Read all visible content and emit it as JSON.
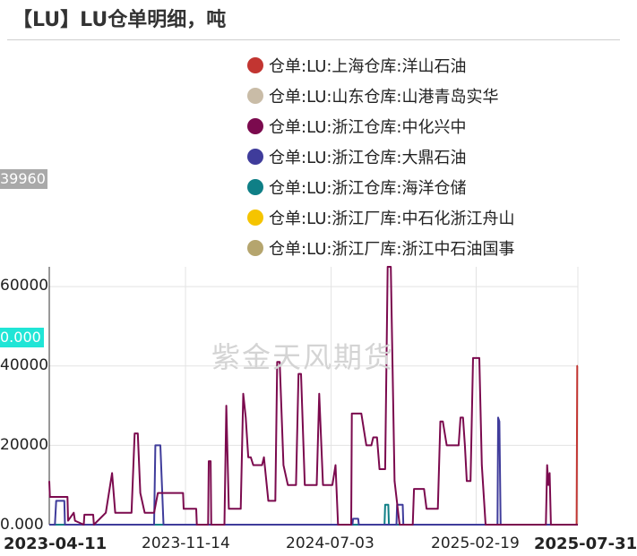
{
  "title": "【LU】LU仓单明细，吨",
  "watermark": "紫金天风期货",
  "y_tag_top": "39960",
  "y_tag_highlight": "0.000",
  "y_tick_labels": [
    "60000",
    "40000",
    "20000",
    "0.000"
  ],
  "x_tick_labels": [
    "2023-04-11",
    "2023-11-14",
    "2024-07-03",
    "2025-02-19",
    "2025-07-31"
  ],
  "legend": [
    {
      "label": "仓单:LU:上海仓库:洋山石油",
      "color": "#c23531"
    },
    {
      "label": "仓单:LU:山东仓库:山港青岛实华",
      "color": "#c9bca7"
    },
    {
      "label": "仓单:LU:浙江仓库:中化兴中",
      "color": "#7b0a4e"
    },
    {
      "label": "仓单:LU:浙江仓库:大鼎石油",
      "color": "#3f3c9b"
    },
    {
      "label": "仓单:LU:浙江仓库:海洋仓储",
      "color": "#0f7f86"
    },
    {
      "label": "仓单:LU:浙江厂库:中石化浙江舟山",
      "color": "#f5c400"
    },
    {
      "label": "仓单:LU:浙江厂库:浙江中石油国事",
      "color": "#b5a56e"
    }
  ],
  "chart_data": {
    "type": "line",
    "title": "【LU】LU仓单明细，吨",
    "xlabel": "",
    "ylabel": "",
    "x_range": [
      "2023-04-11",
      "2025-07-31"
    ],
    "ylim": [
      0,
      65000
    ],
    "grid": true,
    "legend_position": "top-right",
    "series": [
      {
        "name": "仓单:LU:浙江仓库:中化兴中",
        "color": "#7b0a4e",
        "points": [
          [
            "2023-04-11",
            11000
          ],
          [
            "2023-04-12",
            7000
          ],
          [
            "2023-05-10",
            7000
          ],
          [
            "2023-05-11",
            1000
          ],
          [
            "2023-05-20",
            3000
          ],
          [
            "2023-05-22",
            1000
          ],
          [
            "2023-06-05",
            0
          ],
          [
            "2023-06-06",
            2500
          ],
          [
            "2023-06-20",
            2500
          ],
          [
            "2023-06-21",
            0
          ],
          [
            "2023-07-10",
            3000
          ],
          [
            "2023-07-20",
            13000
          ],
          [
            "2023-07-25",
            3000
          ],
          [
            "2023-08-20",
            3000
          ],
          [
            "2023-08-25",
            23000
          ],
          [
            "2023-08-30",
            23000
          ],
          [
            "2023-09-03",
            8000
          ],
          [
            "2023-09-10",
            3000
          ],
          [
            "2023-09-25",
            3000
          ],
          [
            "2023-10-01",
            8000
          ],
          [
            "2023-11-10",
            8000
          ],
          [
            "2023-11-11",
            4000
          ],
          [
            "2023-12-01",
            4000
          ],
          [
            "2023-12-02",
            0
          ],
          [
            "2023-12-20",
            0
          ],
          [
            "2023-12-21",
            16000
          ],
          [
            "2023-12-24",
            16000
          ],
          [
            "2023-12-25",
            0
          ],
          [
            "2024-01-15",
            0
          ],
          [
            "2024-01-18",
            30000
          ],
          [
            "2024-01-22",
            4000
          ],
          [
            "2024-02-10",
            4000
          ],
          [
            "2024-02-14",
            33000
          ],
          [
            "2024-02-18",
            27000
          ],
          [
            "2024-02-22",
            17000
          ],
          [
            "2024-02-26",
            17000
          ],
          [
            "2024-03-01",
            15000
          ],
          [
            "2024-03-15",
            15000
          ],
          [
            "2024-03-18",
            17000
          ],
          [
            "2024-03-25",
            6000
          ],
          [
            "2024-04-05",
            6000
          ],
          [
            "2024-04-08",
            41000
          ],
          [
            "2024-04-12",
            41000
          ],
          [
            "2024-04-18",
            15000
          ],
          [
            "2024-04-25",
            10000
          ],
          [
            "2024-05-08",
            10000
          ],
          [
            "2024-05-12",
            38000
          ],
          [
            "2024-05-16",
            38000
          ],
          [
            "2024-05-22",
            10000
          ],
          [
            "2024-06-10",
            10000
          ],
          [
            "2024-06-14",
            33000
          ],
          [
            "2024-06-20",
            10000
          ],
          [
            "2024-07-05",
            10000
          ],
          [
            "2024-07-10",
            15000
          ],
          [
            "2024-07-14",
            0
          ],
          [
            "2024-08-04",
            0
          ],
          [
            "2024-08-05",
            28000
          ],
          [
            "2024-08-20",
            28000
          ],
          [
            "2024-08-24",
            24000
          ],
          [
            "2024-08-28",
            20000
          ],
          [
            "2024-09-05",
            20000
          ],
          [
            "2024-09-08",
            22000
          ],
          [
            "2024-09-14",
            22000
          ],
          [
            "2024-09-18",
            14000
          ],
          [
            "2024-09-27",
            14000
          ],
          [
            "2024-10-01",
            65000
          ],
          [
            "2024-10-06",
            65000
          ],
          [
            "2024-10-12",
            11000
          ],
          [
            "2024-10-20",
            0
          ],
          [
            "2024-11-10",
            0
          ],
          [
            "2024-11-12",
            9000
          ],
          [
            "2024-11-28",
            9000
          ],
          [
            "2024-12-02",
            4000
          ],
          [
            "2024-12-20",
            4000
          ],
          [
            "2024-12-24",
            26000
          ],
          [
            "2024-12-28",
            26000
          ],
          [
            "2025-01-03",
            20000
          ],
          [
            "2025-01-22",
            20000
          ],
          [
            "2025-01-25",
            27000
          ],
          [
            "2025-01-29",
            27000
          ],
          [
            "2025-02-01",
            20000
          ],
          [
            "2025-02-04",
            11000
          ],
          [
            "2025-02-10",
            11000
          ],
          [
            "2025-02-14",
            42000
          ],
          [
            "2025-02-24",
            42000
          ],
          [
            "2025-02-28",
            15000
          ],
          [
            "2025-03-06",
            0
          ],
          [
            "2025-04-20",
            0
          ],
          [
            "2025-06-10",
            0
          ],
          [
            "2025-06-12",
            15000
          ],
          [
            "2025-06-14",
            10000
          ],
          [
            "2025-06-16",
            13000
          ],
          [
            "2025-06-18",
            0
          ],
          [
            "2025-07-31",
            0
          ]
        ]
      },
      {
        "name": "仓单:LU:浙江仓库:大鼎石油",
        "color": "#3f3c9b",
        "points": [
          [
            "2023-04-11",
            0
          ],
          [
            "2023-04-20",
            0
          ],
          [
            "2023-04-22",
            6000
          ],
          [
            "2023-05-05",
            6000
          ],
          [
            "2023-05-06",
            0
          ],
          [
            "2023-09-25",
            0
          ],
          [
            "2023-09-27",
            20000
          ],
          [
            "2023-10-05",
            20000
          ],
          [
            "2023-10-08",
            8000
          ],
          [
            "2023-10-10",
            0
          ],
          [
            "2024-08-06",
            0
          ],
          [
            "2024-08-07",
            1500
          ],
          [
            "2024-08-15",
            1500
          ],
          [
            "2024-08-16",
            0
          ],
          [
            "2024-10-15",
            0
          ],
          [
            "2024-10-16",
            5000
          ],
          [
            "2024-10-25",
            5000
          ],
          [
            "2024-10-26",
            0
          ],
          [
            "2025-03-25",
            0
          ],
          [
            "2025-03-26",
            27000
          ],
          [
            "2025-03-28",
            26000
          ],
          [
            "2025-03-30",
            0
          ],
          [
            "2025-07-31",
            0
          ]
        ]
      },
      {
        "name": "仓单:LU:浙江仓库:海洋仓储",
        "color": "#0f7f86",
        "points": [
          [
            "2023-04-11",
            0
          ],
          [
            "2024-09-26",
            0
          ],
          [
            "2024-09-27",
            5000
          ],
          [
            "2024-10-02",
            5000
          ],
          [
            "2024-10-03",
            0
          ],
          [
            "2025-07-31",
            0
          ]
        ]
      },
      {
        "name": "仓单:LU:上海仓库:洋山石油",
        "color": "#c23531",
        "points": [
          [
            "2023-04-11",
            0
          ],
          [
            "2025-07-29",
            0
          ],
          [
            "2025-07-30",
            40000
          ],
          [
            "2025-07-31",
            40000
          ]
        ]
      },
      {
        "name": "仓单:LU:浙江厂库:浙江中石油国事",
        "color": "#b5a56e",
        "points": [
          [
            "2023-04-11",
            0
          ],
          [
            "2025-07-31",
            0
          ]
        ]
      }
    ]
  }
}
